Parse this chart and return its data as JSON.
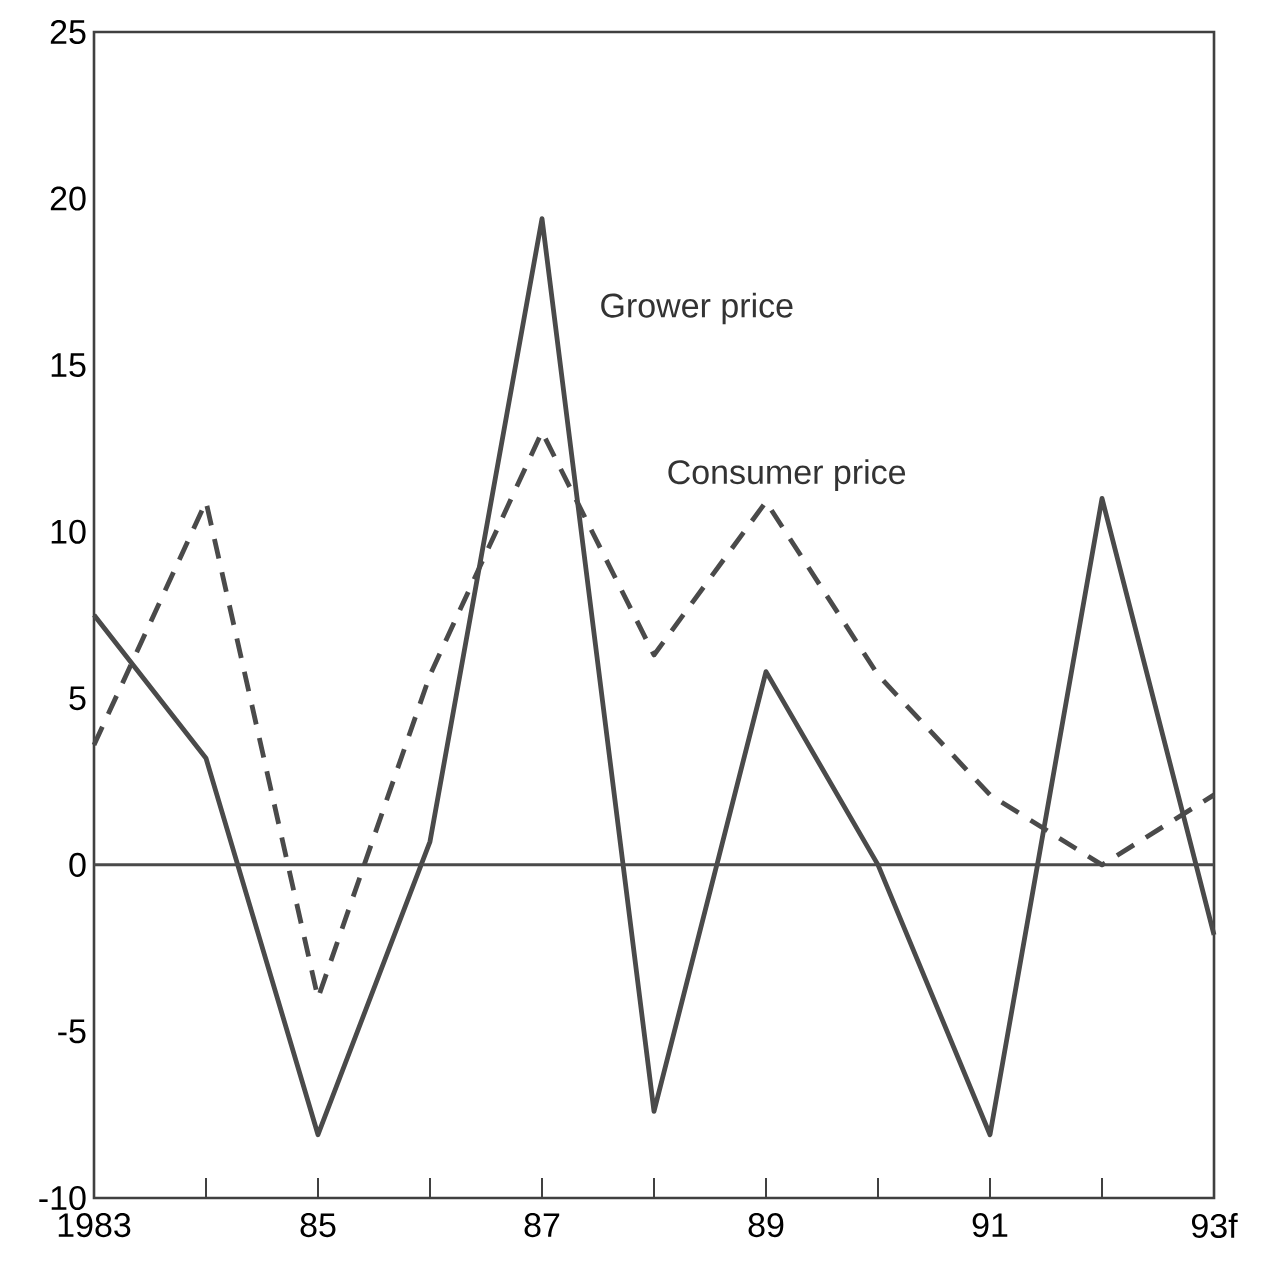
{
  "chart_data": {
    "type": "line",
    "categories": [
      "1983",
      null,
      "85",
      null,
      "87",
      null,
      "89",
      null,
      "91",
      null,
      "93f"
    ],
    "series": [
      {
        "name": "Grower price",
        "color": "#4a4a4a",
        "line_style": "solid",
        "values": [
          7.5,
          3.2,
          -8.1,
          0.7,
          19.4,
          -7.4,
          5.8,
          0,
          -8.1,
          11,
          -2.1
        ]
      },
      {
        "name": "Consumer price",
        "color": "#4a4a4a",
        "line_style": "dashed",
        "values": [
          3.6,
          10.9,
          -4,
          5.7,
          13,
          6.3,
          10.9,
          5.7,
          2.1,
          0,
          2.1
        ]
      }
    ],
    "ylim": [
      -10,
      25
    ],
    "yticks": [
      -10,
      -5,
      0,
      5,
      10,
      15,
      20,
      25
    ],
    "ref_lines": [
      {
        "axis": "y",
        "value": 0,
        "color": "#4a4a4a"
      }
    ],
    "grid": false,
    "marker": "none"
  }
}
